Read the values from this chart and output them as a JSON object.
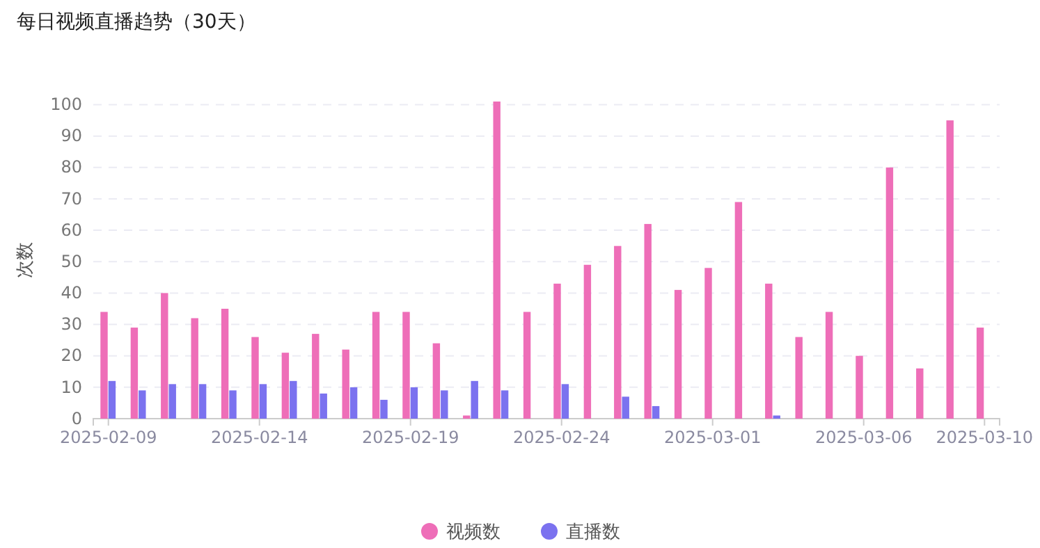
{
  "chart_data": {
    "type": "bar",
    "title": "每日视频直播趋势（30天）",
    "ylabel": "次数",
    "categories": [
      "2025-02-09",
      null,
      null,
      null,
      null,
      "2025-02-14",
      null,
      null,
      null,
      null,
      "2025-02-19",
      null,
      null,
      null,
      null,
      "2025-02-24",
      null,
      null,
      null,
      null,
      "2025-03-01",
      null,
      null,
      null,
      null,
      "2025-03-06",
      null,
      null,
      null,
      "2025-03-10"
    ],
    "series": [
      {
        "name": "视频数",
        "color": "#ee6eb8",
        "values": [
          34,
          29,
          40,
          32,
          35,
          26,
          21,
          27,
          22,
          34,
          34,
          24,
          1,
          101,
          34,
          43,
          49,
          55,
          62,
          41,
          48,
          69,
          43,
          26,
          34,
          20,
          80,
          16,
          95,
          29
        ]
      },
      {
        "name": "直播数",
        "color": "#7b72ef",
        "values": [
          12,
          9,
          11,
          11,
          9,
          11,
          12,
          8,
          10,
          6,
          10,
          9,
          12,
          9,
          0,
          11,
          0,
          7,
          4,
          0,
          0,
          0,
          1,
          0,
          0,
          0,
          0,
          0,
          0,
          0
        ]
      }
    ],
    "ylim": [
      0,
      101
    ],
    "yticks": [
      0,
      10,
      20,
      30,
      40,
      50,
      60,
      70,
      80,
      90,
      100
    ],
    "grid": "y",
    "legend": "bottom"
  }
}
